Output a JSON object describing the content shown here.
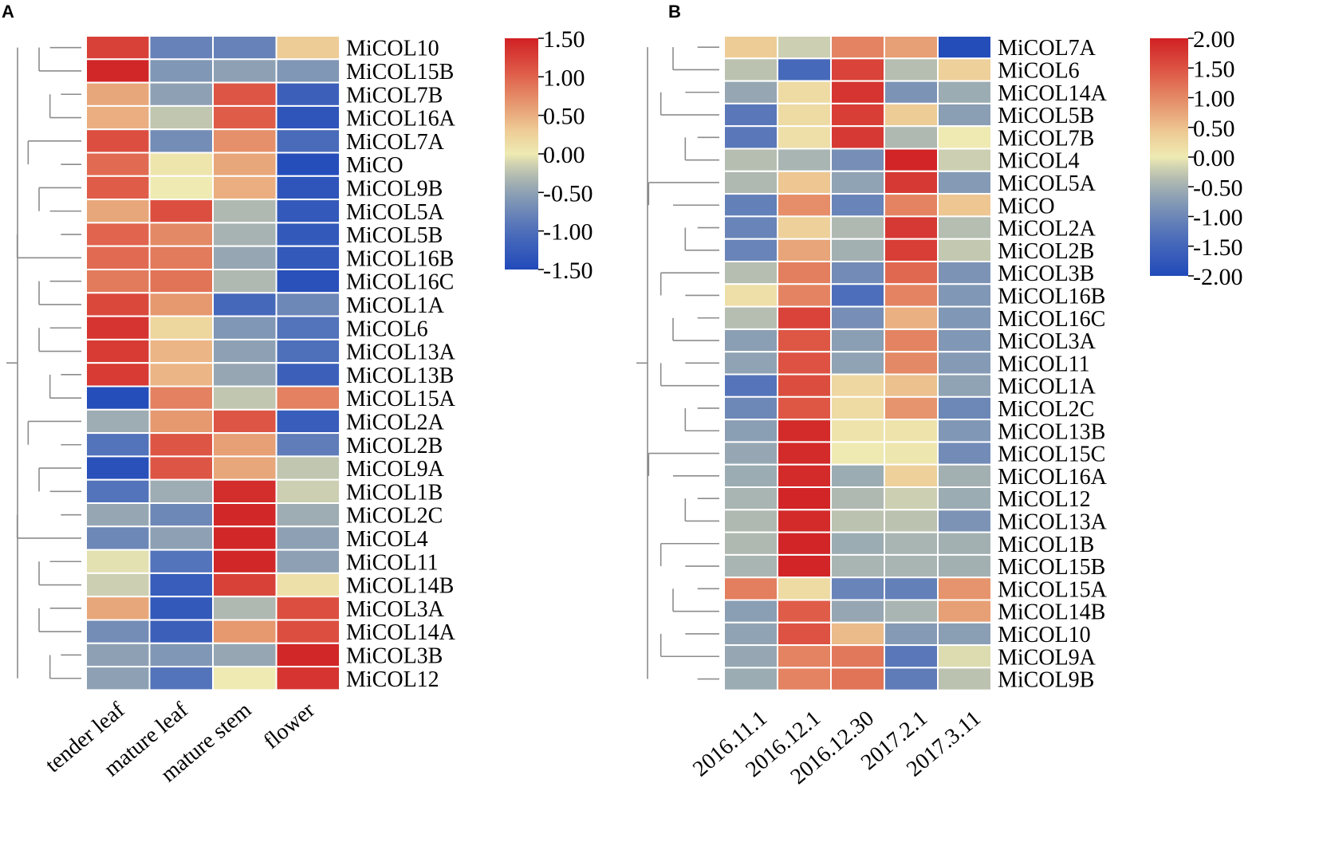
{
  "chart_data": [
    {
      "type": "heatmap",
      "panel": "A",
      "columns": [
        "tender leaf",
        "mature leaf",
        "mature stem",
        "flower"
      ],
      "rows": [
        "MiCOL10",
        "MiCOL15B",
        "MiCOL7B",
        "MiCOL16A",
        "MiCOL7A",
        "MiCO",
        "MiCOL9B",
        "MiCOL5A",
        "MiCOL5B",
        "MiCOL16B",
        "MiCOL16C",
        "MiCOL1A",
        "MiCOL6",
        "MiCOL13A",
        "MiCOL13B",
        "MiCOL15A",
        "MiCOL2A",
        "MiCOL2B",
        "MiCOL9A",
        "MiCOL1B",
        "MiCOL2C",
        "MiCOL4",
        "MiCOL11",
        "MiCOL14B",
        "MiCOL3A",
        "MiCOL14A",
        "MiCOL3B",
        "MiCOL12"
      ],
      "values": [
        [
          1.25,
          -0.8,
          -0.8,
          0.3
        ],
        [
          1.45,
          -0.6,
          -0.5,
          -0.6
        ],
        [
          0.55,
          -0.5,
          1.1,
          -1.2
        ],
        [
          0.5,
          -0.2,
          1.05,
          -1.35
        ],
        [
          1.15,
          -0.7,
          0.7,
          -1.05
        ],
        [
          0.95,
          0.05,
          0.55,
          -1.45
        ],
        [
          1.05,
          0.0,
          0.5,
          -1.35
        ],
        [
          0.55,
          1.15,
          -0.3,
          -1.3
        ],
        [
          1.0,
          0.75,
          -0.35,
          -1.3
        ],
        [
          0.95,
          0.85,
          -0.45,
          -1.3
        ],
        [
          0.85,
          0.9,
          -0.3,
          -1.4
        ],
        [
          1.2,
          0.65,
          -1.1,
          -0.75
        ],
        [
          1.35,
          0.2,
          -0.6,
          -0.95
        ],
        [
          1.3,
          0.45,
          -0.5,
          -1.0
        ],
        [
          1.3,
          0.45,
          -0.45,
          -1.2
        ],
        [
          -1.45,
          0.8,
          -0.2,
          0.8
        ],
        [
          -0.4,
          0.65,
          1.1,
          -1.25
        ],
        [
          -0.95,
          1.1,
          0.6,
          -0.85
        ],
        [
          -1.4,
          1.1,
          0.55,
          -0.2
        ],
        [
          -0.95,
          -0.4,
          1.4,
          -0.15
        ],
        [
          -0.45,
          -0.75,
          1.45,
          -0.4
        ],
        [
          -0.75,
          -0.5,
          1.45,
          -0.5
        ],
        [
          -0.05,
          -0.95,
          1.45,
          -0.5
        ],
        [
          -0.15,
          -1.25,
          1.25,
          0.1
        ],
        [
          0.55,
          -1.3,
          -0.3,
          1.15
        ],
        [
          -0.7,
          -1.2,
          0.65,
          1.15
        ],
        [
          -0.5,
          -0.6,
          -0.45,
          1.45
        ],
        [
          -0.5,
          -0.95,
          0.0,
          1.35
        ]
      ],
      "colorbar": {
        "min": -1.5,
        "max": 1.5,
        "tick_labels": [
          "1.50",
          "1.00",
          "0.50",
          "0.00",
          "-0.50",
          "-1.00",
          "-1.50"
        ]
      }
    },
    {
      "type": "heatmap",
      "panel": "B",
      "columns": [
        "2016.11.1",
        "2016.12.1",
        "2016.12.30",
        "2017.2.1",
        "2017.3.11"
      ],
      "rows": [
        "MiCOL7A",
        "MiCOL6",
        "MiCOL14A",
        "MiCOL5B",
        "MiCOL7B",
        "MiCOL4",
        "MiCOL5A",
        "MiCO",
        "MiCOL2A",
        "MiCOL2B",
        "MiCOL3B",
        "MiCOL16B",
        "MiCOL16C",
        "MiCOL3A",
        "MiCOL11",
        "MiCOL1A",
        "MiCOL2C",
        "MiCOL13B",
        "MiCOL15C",
        "MiCOL16A",
        "MiCOL12",
        "MiCOL13A",
        "MiCOL1B",
        "MiCOL15B",
        "MiCOL15A",
        "MiCOL14B",
        "MiCOL10",
        "MiCOL9A",
        "MiCOL9B"
      ],
      "values": [
        [
          0.4,
          -0.2,
          1.05,
          0.8,
          -1.95
        ],
        [
          -0.3,
          -1.45,
          1.65,
          -0.35,
          0.35
        ],
        [
          -0.6,
          0.2,
          1.8,
          -0.85,
          -0.55
        ],
        [
          -1.2,
          0.2,
          1.7,
          0.4,
          -0.7
        ],
        [
          -1.2,
          0.15,
          1.75,
          -0.4,
          0.0
        ],
        [
          -0.35,
          -0.45,
          -0.9,
          1.95,
          -0.2
        ],
        [
          -0.4,
          0.45,
          -0.65,
          1.75,
          -0.75
        ],
        [
          -1.1,
          0.95,
          -1.05,
          1.05,
          0.45
        ],
        [
          -1.05,
          0.35,
          -0.4,
          1.75,
          -0.35
        ],
        [
          -1.05,
          0.75,
          -0.5,
          1.7,
          -0.25
        ],
        [
          -0.35,
          1.1,
          -0.95,
          1.3,
          -0.85
        ],
        [
          0.15,
          1.05,
          -1.35,
          1.05,
          -0.8
        ],
        [
          -0.35,
          1.65,
          -0.9,
          0.65,
          -0.8
        ],
        [
          -0.7,
          1.45,
          -0.7,
          1.05,
          -0.8
        ],
        [
          -0.65,
          1.5,
          -0.65,
          1.0,
          -0.75
        ],
        [
          -1.25,
          1.55,
          0.25,
          0.5,
          -0.65
        ],
        [
          -1.0,
          1.45,
          0.2,
          0.9,
          -1.0
        ],
        [
          -0.7,
          1.9,
          0.1,
          0.1,
          -0.8
        ],
        [
          -0.6,
          1.9,
          0.0,
          0.05,
          -0.95
        ],
        [
          -0.55,
          1.9,
          -0.55,
          0.35,
          -0.5
        ],
        [
          -0.45,
          1.95,
          -0.4,
          -0.2,
          -0.55
        ],
        [
          -0.4,
          1.9,
          -0.3,
          -0.3,
          -0.85
        ],
        [
          -0.4,
          1.95,
          -0.55,
          -0.45,
          -0.5
        ],
        [
          -0.45,
          1.95,
          -0.45,
          -0.45,
          -0.5
        ],
        [
          1.1,
          0.2,
          -1.05,
          -1.1,
          0.9
        ],
        [
          -0.7,
          1.4,
          -0.6,
          -0.45,
          0.8
        ],
        [
          -0.65,
          1.5,
          0.55,
          -0.75,
          -0.7
        ],
        [
          -0.6,
          1.05,
          1.15,
          -1.2,
          -0.1
        ],
        [
          -0.55,
          1.05,
          1.2,
          -1.15,
          -0.3
        ]
      ],
      "colorbar": {
        "min": -2.0,
        "max": 2.0,
        "tick_labels": [
          "2.00",
          "1.50",
          "1.00",
          "0.50",
          "0.00",
          "-0.50",
          "-1.00",
          "-1.50",
          "-2.00"
        ]
      }
    }
  ],
  "panel_letters": [
    "A",
    "B"
  ]
}
